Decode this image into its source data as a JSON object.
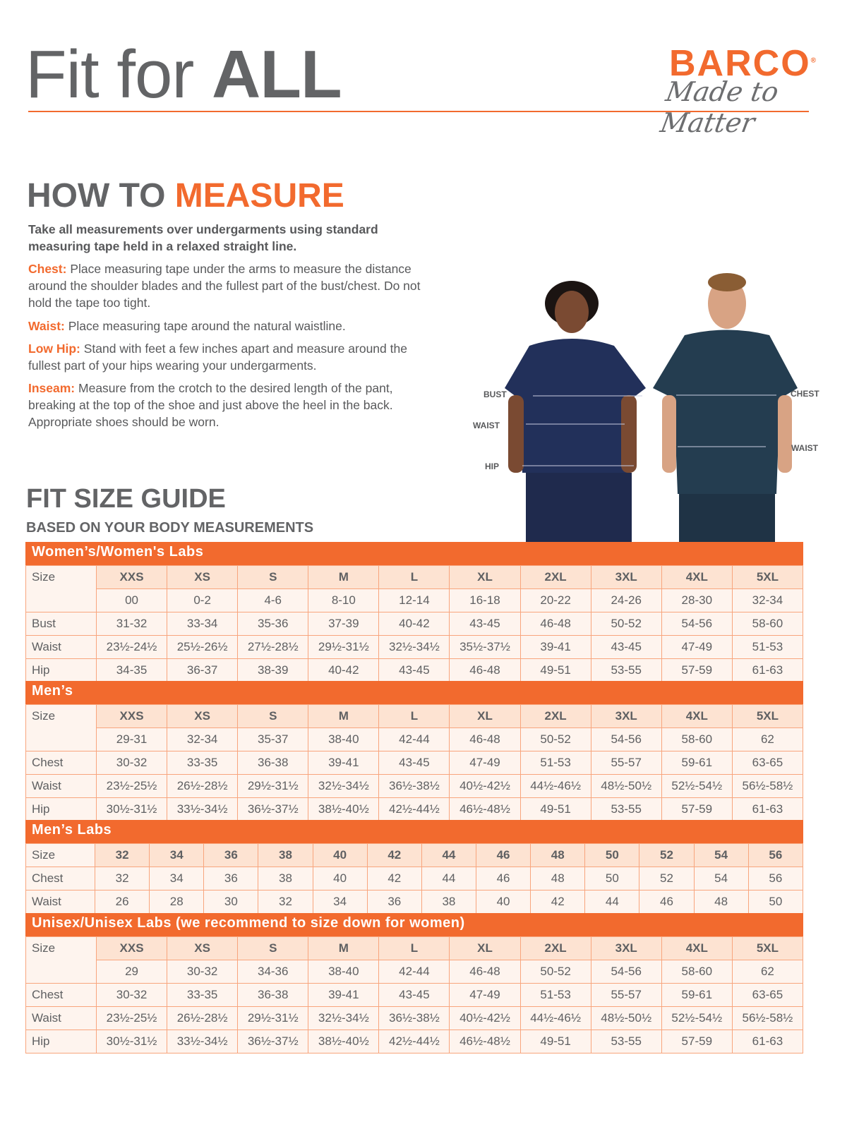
{
  "header": {
    "title_light": "Fit for ",
    "title_bold": "ALL",
    "logo_brand": "BARCO",
    "logo_tagline": "Made to Matter"
  },
  "measure": {
    "title_gray": "HOW TO ",
    "title_orange": "MEASURE",
    "intro": "Take all measurements over undergarments using standard measuring tape held in a relaxed straight line.",
    "items": [
      {
        "key": "Chest:",
        "text": "Place measuring tape under the arms to measure the distance around the shoulder blades and the fullest part of the bust/chest. Do not hold the tape too tight."
      },
      {
        "key": "Waist:",
        "text": "Place measuring tape around the natural waistline."
      },
      {
        "key": "Low Hip:",
        "text": "Stand with feet a few inches apart and measure around the fullest part of your hips wearing your undergarments."
      },
      {
        "key": "Inseam:",
        "text": "Measure from the crotch to the desired length of the pant, breaking at the top of the shoe and just above the heel in the back. Appropriate shoes should be worn."
      }
    ]
  },
  "figure_labels": {
    "bust": "BUST",
    "waist_w": "WAIST",
    "hip": "HIP",
    "chest": "CHEST",
    "waist_m": "WAIST"
  },
  "guide": {
    "title": "FIT SIZE GUIDE",
    "subtitle": "BASED ON YOUR BODY MEASUREMENTS"
  },
  "tables": [
    {
      "title": "Women’s/Women's Labs",
      "sizes": [
        "XXS",
        "XS",
        "S",
        "M",
        "L",
        "XL",
        "2XL",
        "3XL",
        "4XL",
        "5XL"
      ],
      "rows": [
        {
          "label": "Size",
          "values": [
            "00",
            "0-2",
            "4-6",
            "8-10",
            "12-14",
            "16-18",
            "20-22",
            "24-26",
            "28-30",
            "32-34"
          ]
        },
        {
          "label": "Bust",
          "values": [
            "31-32",
            "33-34",
            "35-36",
            "37-39",
            "40-42",
            "43-45",
            "46-48",
            "50-52",
            "54-56",
            "58-60"
          ]
        },
        {
          "label": "Waist",
          "values": [
            "23½-24½",
            "25½-26½",
            "27½-28½",
            "29½-31½",
            "32½-34½",
            "35½-37½",
            "39-41",
            "43-45",
            "47-49",
            "51-53"
          ]
        },
        {
          "label": "Hip",
          "values": [
            "34-35",
            "36-37",
            "38-39",
            "40-42",
            "43-45",
            "46-48",
            "49-51",
            "53-55",
            "57-59",
            "61-63"
          ]
        }
      ]
    },
    {
      "title": "Men’s",
      "sizes": [
        "XXS",
        "XS",
        "S",
        "M",
        "L",
        "XL",
        "2XL",
        "3XL",
        "4XL",
        "5XL"
      ],
      "rows": [
        {
          "label": "Size",
          "values": [
            "29-31",
            "32-34",
            "35-37",
            "38-40",
            "42-44",
            "46-48",
            "50-52",
            "54-56",
            "58-60",
            "62"
          ]
        },
        {
          "label": "Chest",
          "values": [
            "30-32",
            "33-35",
            "36-38",
            "39-41",
            "43-45",
            "47-49",
            "51-53",
            "55-57",
            "59-61",
            "63-65"
          ]
        },
        {
          "label": "Waist",
          "values": [
            "23½-25½",
            "26½-28½",
            "29½-31½",
            "32½-34½",
            "36½-38½",
            "40½-42½",
            "44½-46½",
            "48½-50½",
            "52½-54½",
            "56½-58½"
          ]
        },
        {
          "label": "Hip",
          "values": [
            "30½-31½",
            "33½-34½",
            "36½-37½",
            "38½-40½",
            "42½-44½",
            "46½-48½",
            "49-51",
            "53-55",
            "57-59",
            "61-63"
          ]
        }
      ]
    },
    {
      "title": "Men’s Labs",
      "sizes": [
        "32",
        "34",
        "36",
        "38",
        "40",
        "42",
        "44",
        "46",
        "48",
        "50",
        "52",
        "54",
        "56"
      ],
      "rows": [
        {
          "label": "Chest",
          "values": [
            "32",
            "34",
            "36",
            "38",
            "40",
            "42",
            "44",
            "46",
            "48",
            "50",
            "52",
            "54",
            "56"
          ]
        },
        {
          "label": "Waist",
          "values": [
            "26",
            "28",
            "30",
            "32",
            "34",
            "36",
            "38",
            "40",
            "42",
            "44",
            "46",
            "48",
            "50"
          ]
        }
      ]
    },
    {
      "title": "Unisex/Unisex Labs (we recommend to size down for women)",
      "sizes": [
        "XXS",
        "XS",
        "S",
        "M",
        "L",
        "XL",
        "2XL",
        "3XL",
        "4XL",
        "5XL"
      ],
      "rows": [
        {
          "label": "Size",
          "values": [
            "29",
            "30-32",
            "34-36",
            "38-40",
            "42-44",
            "46-48",
            "50-52",
            "54-56",
            "58-60",
            "62"
          ]
        },
        {
          "label": "Chest",
          "values": [
            "30-32",
            "33-35",
            "36-38",
            "39-41",
            "43-45",
            "47-49",
            "51-53",
            "55-57",
            "59-61",
            "63-65"
          ]
        },
        {
          "label": "Waist",
          "values": [
            "23½-25½",
            "26½-28½",
            "29½-31½",
            "32½-34½",
            "36½-38½",
            "40½-42½",
            "44½-46½",
            "48½-50½",
            "52½-54½",
            "56½-58½"
          ]
        },
        {
          "label": "Hip",
          "values": [
            "30½-31½",
            "33½-34½",
            "36½-37½",
            "38½-40½",
            "42½-44½",
            "46½-48½",
            "49-51",
            "53-55",
            "57-59",
            "61-63"
          ]
        }
      ]
    }
  ],
  "size_label": "Size",
  "colors": {
    "accent": "#f26a2e",
    "heading_gray": "#636466",
    "header_cell": "#fde3d2",
    "body_cell": "#fef4ee",
    "scrub_navy": "#1f2a4d"
  }
}
